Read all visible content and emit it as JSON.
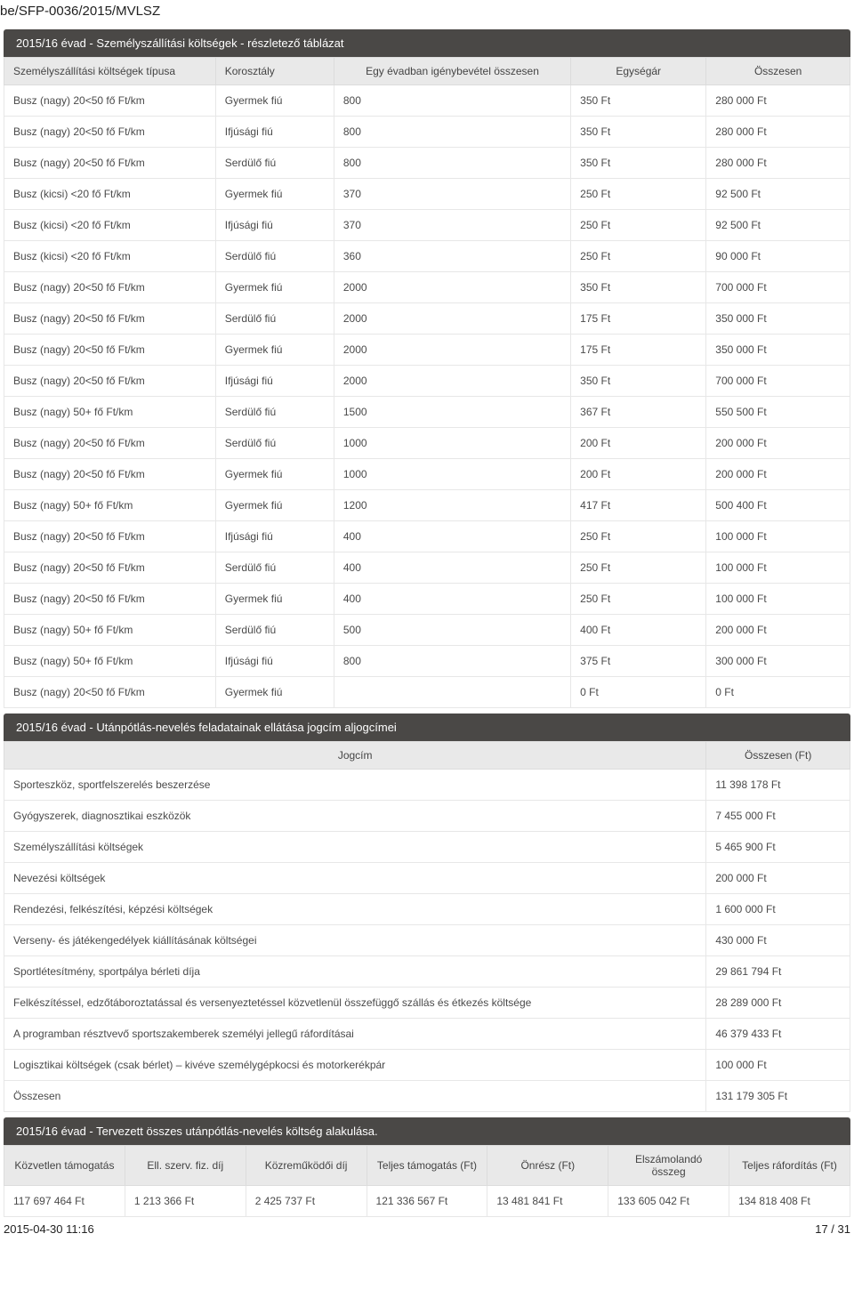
{
  "doc_id": "be/SFP-0036/2015/MVLSZ",
  "section1": {
    "title": "2015/16 évad - Személyszállítási költségek - részletező táblázat",
    "headers": [
      "Személyszállítási költségek típusa",
      "Korosztály",
      "Egy évadban igénybevétel összesen",
      "Egységár",
      "Összesen"
    ],
    "rows": [
      [
        "Busz (nagy) 20<50 fő Ft/km",
        "Gyermek fiú",
        "800",
        "350 Ft",
        "280 000 Ft"
      ],
      [
        "Busz (nagy) 20<50 fő Ft/km",
        "Ifjúsági fiú",
        "800",
        "350 Ft",
        "280 000 Ft"
      ],
      [
        "Busz (nagy) 20<50 fő Ft/km",
        "Serdülő fiú",
        "800",
        "350 Ft",
        "280 000 Ft"
      ],
      [
        "Busz (kicsi) <20 fő Ft/km",
        "Gyermek fiú",
        "370",
        "250 Ft",
        "92 500 Ft"
      ],
      [
        "Busz (kicsi) <20 fő Ft/km",
        "Ifjúsági fiú",
        "370",
        "250 Ft",
        "92 500 Ft"
      ],
      [
        "Busz (kicsi) <20 fő Ft/km",
        "Serdülő fiú",
        "360",
        "250 Ft",
        "90 000 Ft"
      ],
      [
        "Busz (nagy) 20<50 fő Ft/km",
        "Gyermek fiú",
        "2000",
        "350 Ft",
        "700 000 Ft"
      ],
      [
        "Busz (nagy) 20<50 fő Ft/km",
        "Serdülő fiú",
        "2000",
        "175 Ft",
        "350 000 Ft"
      ],
      [
        "Busz (nagy) 20<50 fő Ft/km",
        "Gyermek fiú",
        "2000",
        "175 Ft",
        "350 000 Ft"
      ],
      [
        "Busz (nagy) 20<50 fő Ft/km",
        "Ifjúsági fiú",
        "2000",
        "350 Ft",
        "700 000 Ft"
      ],
      [
        "Busz (nagy) 50+ fő Ft/km",
        "Serdülő fiú",
        "1500",
        "367 Ft",
        "550 500 Ft"
      ],
      [
        "Busz (nagy) 20<50 fő Ft/km",
        "Serdülő fiú",
        "1000",
        "200 Ft",
        "200 000 Ft"
      ],
      [
        "Busz (nagy) 20<50 fő Ft/km",
        "Gyermek fiú",
        "1000",
        "200 Ft",
        "200 000 Ft"
      ],
      [
        "Busz (nagy) 50+ fő Ft/km",
        "Gyermek fiú",
        "1200",
        "417 Ft",
        "500 400 Ft"
      ],
      [
        "Busz (nagy) 20<50 fő Ft/km",
        "Ifjúsági fiú",
        "400",
        "250 Ft",
        "100 000 Ft"
      ],
      [
        "Busz (nagy) 20<50 fő Ft/km",
        "Serdülő fiú",
        "400",
        "250 Ft",
        "100 000 Ft"
      ],
      [
        "Busz (nagy) 20<50 fő Ft/km",
        "Gyermek fiú",
        "400",
        "250 Ft",
        "100 000 Ft"
      ],
      [
        "Busz (nagy) 50+ fő Ft/km",
        "Serdülő fiú",
        "500",
        "400 Ft",
        "200 000 Ft"
      ],
      [
        "Busz (nagy) 50+ fő Ft/km",
        "Ifjúsági fiú",
        "800",
        "375 Ft",
        "300 000 Ft"
      ],
      [
        "Busz (nagy) 20<50 fő Ft/km",
        "Gyermek fiú",
        "",
        "0 Ft",
        "0 Ft"
      ]
    ]
  },
  "section2": {
    "title": "2015/16 évad - Utánpótlás-nevelés feladatainak ellátása jogcím aljogcímei",
    "headers": [
      "Jogcím",
      "Összesen (Ft)"
    ],
    "rows": [
      [
        "Sporteszköz, sportfelszerelés beszerzése",
        "11 398 178 Ft"
      ],
      [
        "Gyógyszerek, diagnosztikai eszközök",
        "7 455 000 Ft"
      ],
      [
        "Személyszállítási költségek",
        "5 465 900 Ft"
      ],
      [
        "Nevezési költségek",
        "200 000 Ft"
      ],
      [
        "Rendezési, felkészítési, képzési költségek",
        "1 600 000 Ft"
      ],
      [
        "Verseny- és játékengedélyek kiállításának költségei",
        "430 000 Ft"
      ],
      [
        "Sportlétesítmény, sportpálya bérleti díja",
        "29 861 794 Ft"
      ],
      [
        "Felkészítéssel, edzőtáboroztatással és versenyeztetéssel közvetlenül összefüggő szállás és étkezés költsége",
        "28 289 000 Ft"
      ],
      [
        "A programban résztvevő sportszakemberek személyi jellegű ráfordításai",
        "46 379 433 Ft"
      ],
      [
        "Logisztikai költségek (csak bérlet) – kivéve személygépkocsi és motorkerékpár",
        "100 000 Ft"
      ],
      [
        "Összesen",
        "131 179 305 Ft"
      ]
    ]
  },
  "section3": {
    "title": "2015/16 évad - Tervezett összes utánpótlás-nevelés költség alakulása.",
    "headers": [
      "Közvetlen támogatás",
      "Ell. szerv. fiz. díj",
      "Közreműködői díj",
      "Teljes támogatás (Ft)",
      "Önrész (Ft)",
      "Elszámolandó összeg",
      "Teljes ráfordítás (Ft)"
    ],
    "rows": [
      [
        "117 697 464 Ft",
        "1 213 366 Ft",
        "2 425 737 Ft",
        "121 336 567 Ft",
        "13 481 841 Ft",
        "133 605 042 Ft",
        "134 818 408 Ft"
      ]
    ]
  },
  "footer": {
    "left": "2015-04-30 11:16",
    "right": "17 / 31"
  },
  "colors": {
    "band_bg": "#4a4846",
    "band_text": "#ffffff",
    "header_bg": "#e9e9e9",
    "border": "#e7e7e7",
    "text": "#4a4a4a"
  }
}
